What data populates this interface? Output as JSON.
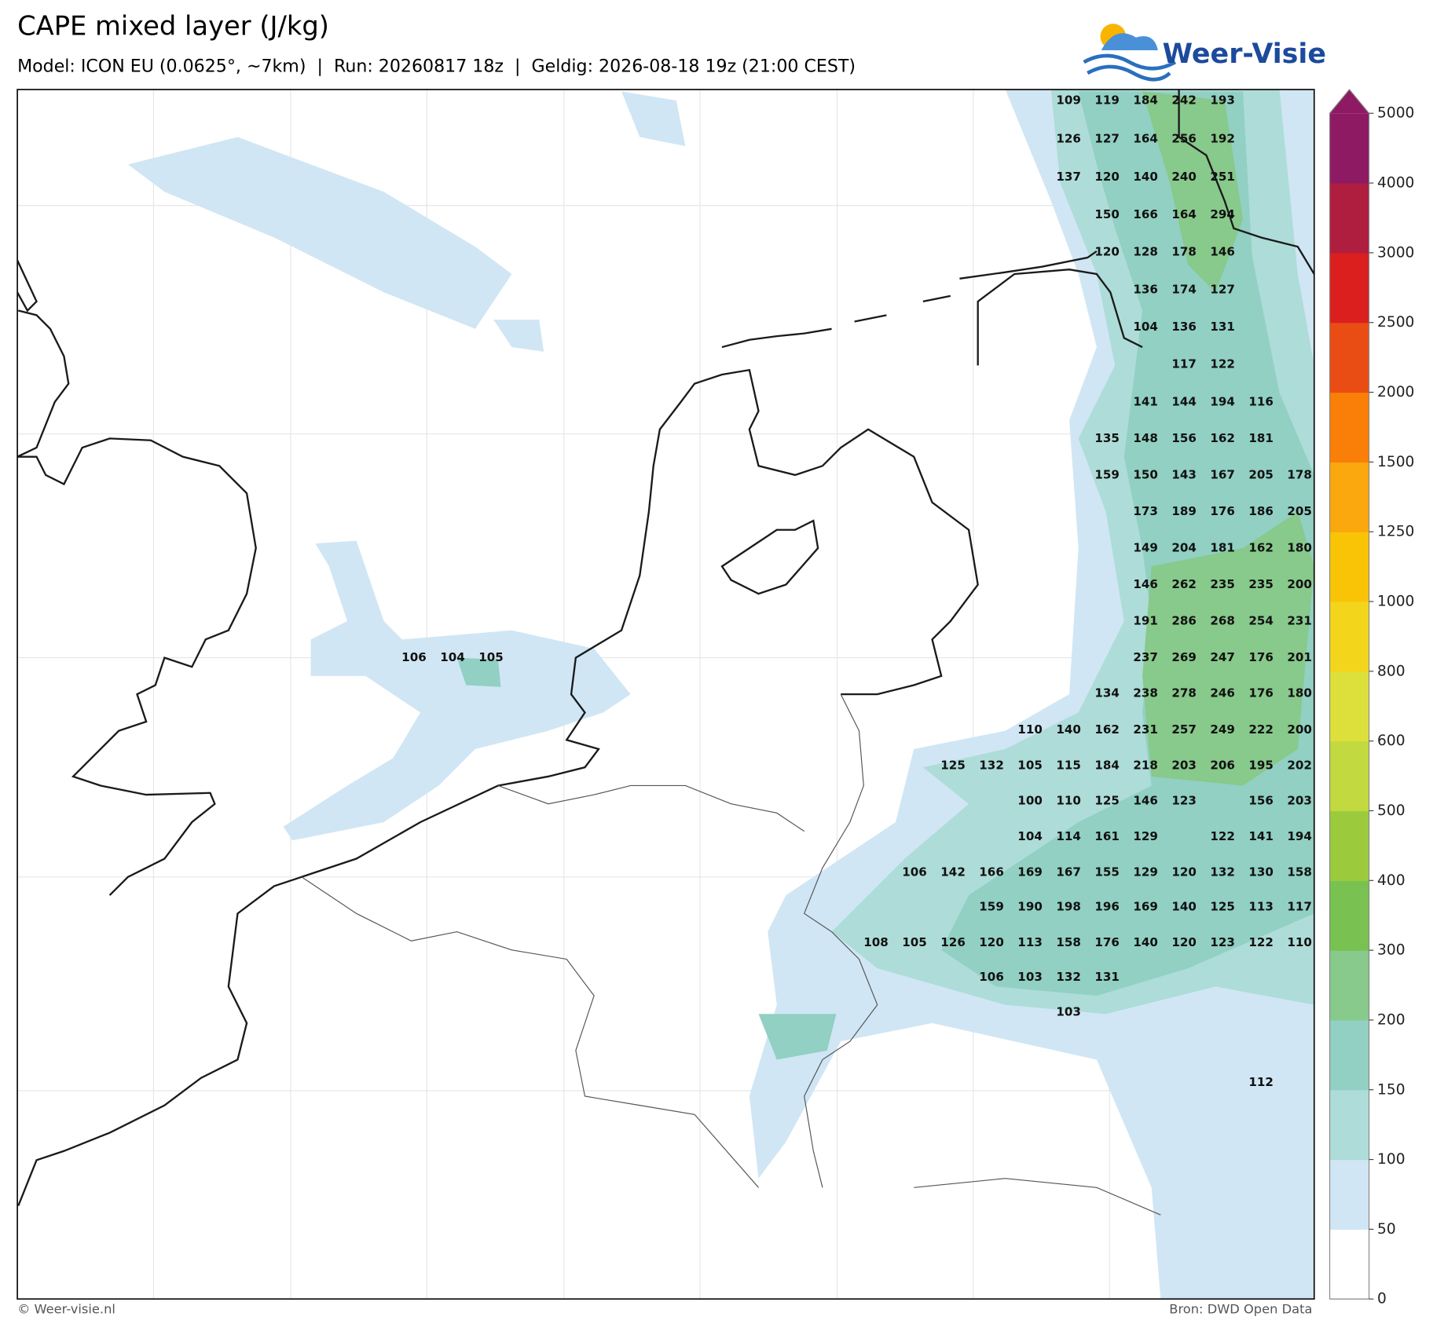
{
  "header": {
    "title": "CAPE mixed layer (J/kg)",
    "subtitle": "Model: ICON EU (0.0625°, ~7km)  |  Run: 20260817 18z  |  Geldig: 2026-08-18 19z (21:00 CEST)",
    "logo": "Weer-Visie"
  },
  "map": {
    "grid_values": [
      [
        null,
        null,
        null,
        null,
        null,
        null,
        null,
        null,
        null,
        null,
        null,
        null,
        null,
        null,
        null,
        null,
        null,
        109,
        119,
        184,
        242,
        193,
        null,
        null
      ],
      [
        null,
        null,
        null,
        null,
        null,
        null,
        null,
        null,
        null,
        null,
        null,
        null,
        null,
        null,
        null,
        null,
        null,
        126,
        127,
        164,
        256,
        192,
        null,
        null
      ],
      [
        null,
        null,
        null,
        null,
        null,
        null,
        null,
        null,
        null,
        null,
        null,
        null,
        null,
        null,
        null,
        null,
        null,
        137,
        120,
        140,
        240,
        251,
        null,
        null
      ],
      [
        null,
        null,
        null,
        null,
        null,
        null,
        null,
        null,
        null,
        null,
        null,
        null,
        null,
        null,
        null,
        null,
        null,
        null,
        150,
        166,
        164,
        294,
        null,
        null
      ],
      [
        null,
        null,
        null,
        null,
        null,
        null,
        null,
        null,
        null,
        null,
        null,
        null,
        null,
        null,
        null,
        null,
        null,
        null,
        120,
        128,
        178,
        146,
        null,
        null
      ],
      [
        null,
        null,
        null,
        null,
        null,
        null,
        null,
        null,
        null,
        null,
        null,
        null,
        null,
        null,
        null,
        null,
        null,
        null,
        null,
        136,
        174,
        127,
        null,
        null
      ],
      [
        null,
        null,
        null,
        null,
        null,
        null,
        null,
        null,
        null,
        null,
        null,
        null,
        null,
        null,
        null,
        null,
        null,
        null,
        null,
        104,
        136,
        131,
        null,
        null
      ],
      [
        null,
        null,
        null,
        null,
        null,
        null,
        null,
        null,
        null,
        null,
        null,
        null,
        null,
        null,
        null,
        null,
        null,
        null,
        null,
        null,
        117,
        122,
        null,
        null
      ],
      [
        null,
        null,
        null,
        null,
        null,
        null,
        null,
        null,
        null,
        null,
        null,
        null,
        null,
        null,
        null,
        null,
        null,
        null,
        null,
        141,
        144,
        194,
        116,
        null
      ],
      [
        null,
        null,
        null,
        null,
        null,
        null,
        null,
        null,
        null,
        null,
        null,
        null,
        null,
        null,
        null,
        null,
        null,
        null,
        135,
        148,
        156,
        162,
        181,
        null
      ],
      [
        null,
        null,
        null,
        null,
        null,
        null,
        null,
        null,
        null,
        null,
        null,
        null,
        null,
        null,
        null,
        null,
        null,
        null,
        159,
        150,
        143,
        167,
        205,
        178
      ],
      [
        null,
        null,
        null,
        null,
        null,
        null,
        null,
        null,
        null,
        null,
        null,
        null,
        null,
        null,
        null,
        null,
        null,
        null,
        null,
        173,
        189,
        176,
        186,
        205
      ],
      [
        null,
        null,
        null,
        null,
        null,
        null,
        null,
        null,
        null,
        null,
        null,
        null,
        null,
        null,
        null,
        null,
        null,
        null,
        null,
        149,
        204,
        181,
        162,
        180
      ],
      [
        null,
        null,
        null,
        null,
        null,
        null,
        null,
        null,
        null,
        null,
        null,
        null,
        null,
        null,
        null,
        null,
        null,
        null,
        null,
        146,
        262,
        235,
        235,
        200
      ],
      [
        null,
        null,
        null,
        null,
        null,
        null,
        null,
        null,
        null,
        null,
        null,
        null,
        null,
        null,
        null,
        null,
        null,
        null,
        null,
        191,
        286,
        268,
        254,
        231
      ],
      [
        106,
        104,
        105,
        null,
        null,
        null,
        null,
        null,
        null,
        null,
        null,
        null,
        null,
        null,
        null,
        null,
        null,
        null,
        null,
        237,
        269,
        247,
        176,
        201
      ],
      [
        null,
        null,
        null,
        null,
        null,
        null,
        null,
        null,
        null,
        null,
        null,
        null,
        null,
        null,
        null,
        null,
        null,
        null,
        134,
        238,
        278,
        246,
        176,
        180
      ],
      [
        null,
        null,
        null,
        null,
        null,
        null,
        null,
        null,
        null,
        null,
        null,
        null,
        null,
        null,
        null,
        null,
        110,
        140,
        162,
        231,
        257,
        249,
        222,
        200
      ],
      [
        null,
        null,
        null,
        null,
        null,
        null,
        null,
        null,
        null,
        null,
        null,
        null,
        null,
        null,
        125,
        132,
        105,
        115,
        184,
        218,
        203,
        206,
        195,
        202
      ],
      [
        null,
        null,
        null,
        null,
        null,
        null,
        null,
        null,
        null,
        null,
        null,
        null,
        null,
        null,
        null,
        null,
        100,
        110,
        125,
        146,
        123,
        null,
        156,
        203
      ],
      [
        null,
        null,
        null,
        null,
        null,
        null,
        null,
        null,
        null,
        null,
        null,
        null,
        null,
        null,
        null,
        null,
        104,
        114,
        161,
        129,
        null,
        122,
        141,
        194
      ],
      [
        null,
        null,
        null,
        null,
        null,
        null,
        null,
        null,
        null,
        null,
        null,
        null,
        null,
        106,
        142,
        166,
        169,
        167,
        155,
        129,
        120,
        132,
        130,
        158
      ],
      [
        null,
        null,
        null,
        null,
        null,
        null,
        null,
        null,
        null,
        null,
        null,
        null,
        null,
        null,
        null,
        159,
        190,
        198,
        196,
        169,
        140,
        125,
        113,
        117
      ],
      [
        null,
        null,
        null,
        null,
        null,
        null,
        null,
        null,
        null,
        null,
        null,
        null,
        108,
        105,
        126,
        120,
        113,
        158,
        176,
        140,
        120,
        123,
        122,
        110
      ],
      [
        null,
        null,
        null,
        null,
        null,
        null,
        null,
        null,
        null,
        null,
        null,
        null,
        null,
        null,
        null,
        106,
        103,
        132,
        131,
        null,
        null,
        null,
        null,
        null
      ],
      [
        null,
        null,
        null,
        null,
        null,
        null,
        null,
        null,
        null,
        null,
        null,
        null,
        null,
        null,
        null,
        null,
        null,
        103,
        null,
        null,
        null,
        null,
        null,
        null
      ],
      [
        null,
        null,
        null,
        null,
        null,
        null,
        null,
        null,
        null,
        null,
        null,
        null,
        null,
        null,
        null,
        null,
        null,
        null,
        null,
        null,
        null,
        null,
        null,
        null
      ],
      [
        null,
        null,
        null,
        null,
        null,
        null,
        null,
        null,
        null,
        null,
        null,
        null,
        null,
        null,
        null,
        null,
        null,
        null,
        null,
        null,
        null,
        null,
        112,
        null
      ]
    ]
  },
  "colorbar": {
    "levels": [
      0,
      50,
      100,
      150,
      200,
      300,
      400,
      500,
      600,
      800,
      1000,
      1250,
      1500,
      2000,
      2500,
      3000,
      4000,
      5000
    ],
    "colors": [
      "#ffffff",
      "#d0e6f4",
      "#aedcd8",
      "#91d0c3",
      "#88c98c",
      "#79c150",
      "#9bcb3d",
      "#c2d93f",
      "#dde03a",
      "#f3d51c",
      "#f8c405",
      "#fba70e",
      "#f97f08",
      "#ea4d14",
      "#db1f1f",
      "#af1e3e",
      "#8e1a64"
    ]
  },
  "footer": {
    "left": "© Weer-visie.nl",
    "right": "Bron: DWD Open Data"
  }
}
